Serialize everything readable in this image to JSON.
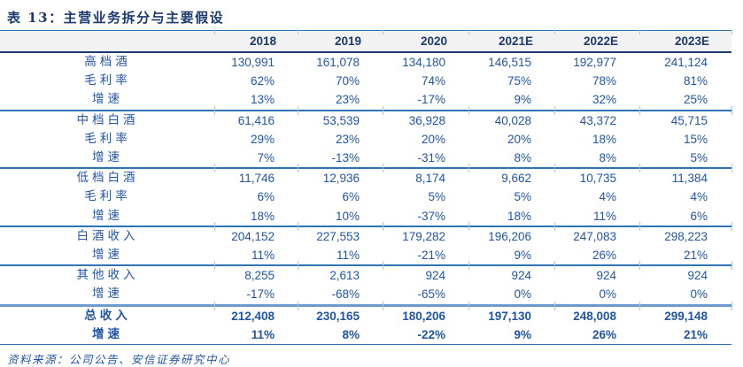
{
  "title": "表 13：主营业务拆分与主要假设",
  "header": {
    "label_column": "",
    "columns": [
      "2018",
      "2019",
      "2020",
      "2021E",
      "2022E",
      "2023E"
    ]
  },
  "rows": [
    {
      "label": "高档酒",
      "values": [
        "130,991",
        "161,078",
        "134,180",
        "146,515",
        "192,977",
        "241,124"
      ]
    },
    {
      "label": "毛利率",
      "values": [
        "62%",
        "70%",
        "74%",
        "75%",
        "78%",
        "81%"
      ]
    },
    {
      "label": "增速",
      "values": [
        "13%",
        "23%",
        "-17%",
        "9%",
        "32%",
        "25%"
      ]
    },
    {
      "label": "中档白酒",
      "values": [
        "61,416",
        "53,539",
        "36,928",
        "40,028",
        "43,372",
        "45,715"
      ],
      "rule": "line"
    },
    {
      "label": "毛利率",
      "values": [
        "29%",
        "23%",
        "20%",
        "20%",
        "18%",
        "15%"
      ]
    },
    {
      "label": "增速",
      "values": [
        "7%",
        "-13%",
        "-31%",
        "8%",
        "8%",
        "5%"
      ]
    },
    {
      "label": "低档白酒",
      "values": [
        "11,746",
        "12,936",
        "8,174",
        "9,662",
        "10,735",
        "11,384"
      ],
      "rule": "line"
    },
    {
      "label": "毛利率",
      "values": [
        "6%",
        "6%",
        "5%",
        "5%",
        "4%",
        "4%"
      ]
    },
    {
      "label": "增速",
      "values": [
        "18%",
        "10%",
        "-37%",
        "18%",
        "11%",
        "6%"
      ]
    },
    {
      "label": "白酒收入",
      "values": [
        "204,152",
        "227,553",
        "179,282",
        "196,206",
        "247,083",
        "298,223"
      ],
      "rule": "line"
    },
    {
      "label": "增速",
      "values": [
        "11%",
        "11%",
        "-21%",
        "9%",
        "26%",
        "21%"
      ]
    },
    {
      "label": "其他收入",
      "values": [
        "8,255",
        "2,613",
        "924",
        "924",
        "924",
        "924"
      ],
      "rule": "line"
    },
    {
      "label": "增速",
      "values": [
        "-17%",
        "-68%",
        "-65%",
        "0%",
        "0%",
        "0%"
      ]
    },
    {
      "label": "总收入",
      "values": [
        "212,408",
        "230,165",
        "180,206",
        "197,130",
        "248,008",
        "299,148"
      ],
      "rule": "thick",
      "bold": true
    },
    {
      "label": "增速",
      "values": [
        "11%",
        "8%",
        "-22%",
        "9%",
        "26%",
        "21%"
      ],
      "bold": true
    }
  ],
  "footer": {
    "source": "资料来源：公司公告、安信证券研究中心"
  },
  "colors": {
    "title_text": "#1b3a70",
    "body_text": "#2155a5",
    "rule_blue": "#2e74b5",
    "heavy_rule_navy": "#1b3a70",
    "thick_rule_light_blue": "#6b9ace",
    "header_background": "#f2f2f2"
  }
}
